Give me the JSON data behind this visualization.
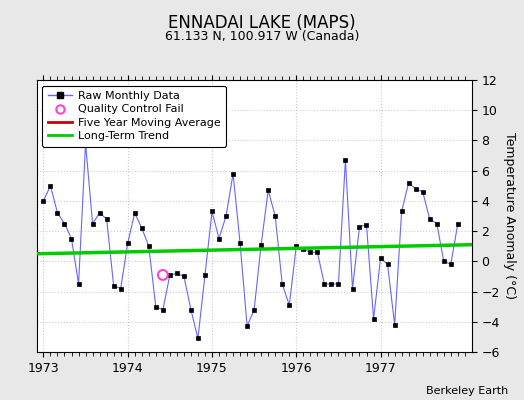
{
  "title": "ENNADAI LAKE (MAPS)",
  "subtitle": "61.133 N, 100.917 W (Canada)",
  "ylabel": "Temperature Anomaly (°C)",
  "credit": "Berkeley Earth",
  "ylim": [
    -6,
    12
  ],
  "yticks": [
    -6,
    -4,
    -2,
    0,
    2,
    4,
    6,
    8,
    10,
    12
  ],
  "xlim_start": 1972.92,
  "xlim_end": 1978.08,
  "fig_bg_color": "#e8e8e8",
  "plot_bg_color": "#ffffff",
  "raw_x": [
    1973.0,
    1973.083,
    1973.167,
    1973.25,
    1973.333,
    1973.417,
    1973.5,
    1973.583,
    1973.667,
    1973.75,
    1973.833,
    1973.917,
    1974.0,
    1974.083,
    1974.167,
    1974.25,
    1974.333,
    1974.417,
    1974.5,
    1974.583,
    1974.667,
    1974.75,
    1974.833,
    1974.917,
    1975.0,
    1975.083,
    1975.167,
    1975.25,
    1975.333,
    1975.417,
    1975.5,
    1975.583,
    1975.667,
    1975.75,
    1975.833,
    1975.917,
    1976.0,
    1976.083,
    1976.167,
    1976.25,
    1976.333,
    1976.417,
    1976.5,
    1976.583,
    1976.667,
    1976.75,
    1976.833,
    1976.917,
    1977.0,
    1977.083,
    1977.167,
    1977.25,
    1977.333,
    1977.417,
    1977.5,
    1977.583,
    1977.667,
    1977.75,
    1977.833,
    1977.917
  ],
  "raw_y": [
    4.0,
    5.0,
    3.2,
    2.5,
    1.5,
    -1.5,
    7.8,
    2.5,
    3.2,
    2.8,
    -1.6,
    -1.8,
    1.2,
    3.2,
    2.2,
    1.0,
    -3.0,
    -3.2,
    -0.9,
    -0.8,
    -1.0,
    -3.2,
    -5.1,
    -0.9,
    3.3,
    1.5,
    3.0,
    5.8,
    1.2,
    -4.3,
    -3.2,
    1.1,
    4.7,
    3.0,
    -1.5,
    -2.9,
    1.0,
    0.8,
    0.6,
    0.6,
    -1.5,
    -1.5,
    -1.5,
    6.7,
    -1.8,
    2.3,
    2.4,
    -3.8,
    0.2,
    -0.2,
    -4.2,
    3.3,
    5.2,
    4.8,
    4.6,
    2.8,
    2.5,
    0.0,
    -0.2,
    2.5
  ],
  "qc_fail_x": [
    1974.417
  ],
  "qc_fail_y": [
    -0.9
  ],
  "trend_x": [
    1972.92,
    1978.08
  ],
  "trend_y": [
    0.5,
    1.1
  ],
  "line_color": "#6666ff",
  "marker_color": "#000000",
  "trend_color": "#00cc00",
  "moving_avg_color": "#cc0000",
  "qc_color": "#ff44cc",
  "grid_color": "#cccccc",
  "title_fontsize": 12,
  "subtitle_fontsize": 9,
  "tick_fontsize": 9,
  "ylabel_fontsize": 9,
  "legend_fontsize": 8,
  "credit_fontsize": 8
}
